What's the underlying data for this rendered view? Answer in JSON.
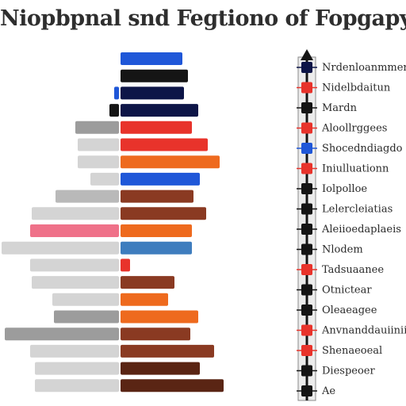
{
  "title": "Niopbpnal snd Fegtiono of Fopgapy",
  "colors": {
    "navy": "#0d1547",
    "blue": "#1f57d8",
    "black": "#151515",
    "red": "#e8332b",
    "orange": "#ee6a1e",
    "lightorange": "#f08a52",
    "brown": "#8a3a22",
    "darkbrown": "#5a2514",
    "steelblue": "#3e7dbe",
    "pink": "#ef7189",
    "gray": "#b9b9b9",
    "lightgray": "#d4d4d4",
    "darkgray": "#9c9c9c"
  },
  "chart_data": {
    "type": "bar",
    "subtype": "diverging-horizontal",
    "title": "Niopbpnal snd Fegtiono of Fopgapy",
    "xlabel": "",
    "ylabel": "",
    "grid": false,
    "legend_placement": "right",
    "rows": [
      {
        "left": 0,
        "right": 78,
        "left_color": "gray",
        "right_color": "blue"
      },
      {
        "left": 0,
        "right": 85,
        "left_color": "gray",
        "right_color": "black"
      },
      {
        "left": 6,
        "right": 80,
        "left_color": "blue",
        "right_color": "navy"
      },
      {
        "left": 12,
        "right": 98,
        "left_color": "black",
        "right_color": "navy"
      },
      {
        "left": 55,
        "right": 90,
        "left_color": "darkgray",
        "right_color": "red"
      },
      {
        "left": 52,
        "right": 110,
        "left_color": "lightgray",
        "right_color": "red"
      },
      {
        "left": 52,
        "right": 125,
        "left_color": "lightgray",
        "right_color": "orange"
      },
      {
        "left": 36,
        "right": 100,
        "left_color": "lightgray",
        "right_color": "blue"
      },
      {
        "left": 80,
        "right": 92,
        "left_color": "gray",
        "right_color": "brown"
      },
      {
        "left": 110,
        "right": 108,
        "left_color": "lightgray",
        "right_color": "brown"
      },
      {
        "left": 112,
        "right": 90,
        "left_color": "pink",
        "right_color": "orange"
      },
      {
        "left": 148,
        "right": 90,
        "left_color": "lightgray",
        "right_color": "steelblue"
      },
      {
        "left": 112,
        "right": 12,
        "left_color": "lightgray",
        "right_color": "red"
      },
      {
        "left": 110,
        "right": 68,
        "left_color": "lightgray",
        "right_color": "brown"
      },
      {
        "left": 84,
        "right": 60,
        "left_color": "lightgray",
        "right_color": "orange"
      },
      {
        "left": 82,
        "right": 98,
        "left_color": "darkgray",
        "right_color": "orange"
      },
      {
        "left": 144,
        "right": 88,
        "left_color": "darkgray",
        "right_color": "brown"
      },
      {
        "left": 112,
        "right": 118,
        "left_color": "lightgray",
        "right_color": "brown"
      },
      {
        "left": 106,
        "right": 100,
        "left_color": "lightgray",
        "right_color": "darkbrown"
      },
      {
        "left": 106,
        "right": 130,
        "left_color": "lightgray",
        "right_color": "darkbrown"
      }
    ],
    "legend": [
      {
        "label": "Nrdenloanmmer",
        "color": "navy"
      },
      {
        "label": "Nidelbdaitun",
        "color": "red"
      },
      {
        "label": "Mardn",
        "color": "black"
      },
      {
        "label": "Aloollrggees",
        "color": "red"
      },
      {
        "label": "Shocedndiagdo",
        "color": "blue"
      },
      {
        "label": "Iniulluationn",
        "color": "red"
      },
      {
        "label": "Iolpolloe",
        "color": "black"
      },
      {
        "label": "Lelercleiatias",
        "color": "black"
      },
      {
        "label": "Aleiioedaplaeis",
        "color": "black"
      },
      {
        "label": "Nlodem",
        "color": "black"
      },
      {
        "label": "Tadsuaanee",
        "color": "red"
      },
      {
        "label": "Otnictear",
        "color": "black"
      },
      {
        "label": "Oleaeagee",
        "color": "black"
      },
      {
        "label": "Anvnanddauiiniia",
        "color": "red"
      },
      {
        "label": "Shenaeoeal",
        "color": "red"
      },
      {
        "label": "Diespeoer",
        "color": "black"
      },
      {
        "label": "Ae",
        "color": "black"
      }
    ]
  }
}
